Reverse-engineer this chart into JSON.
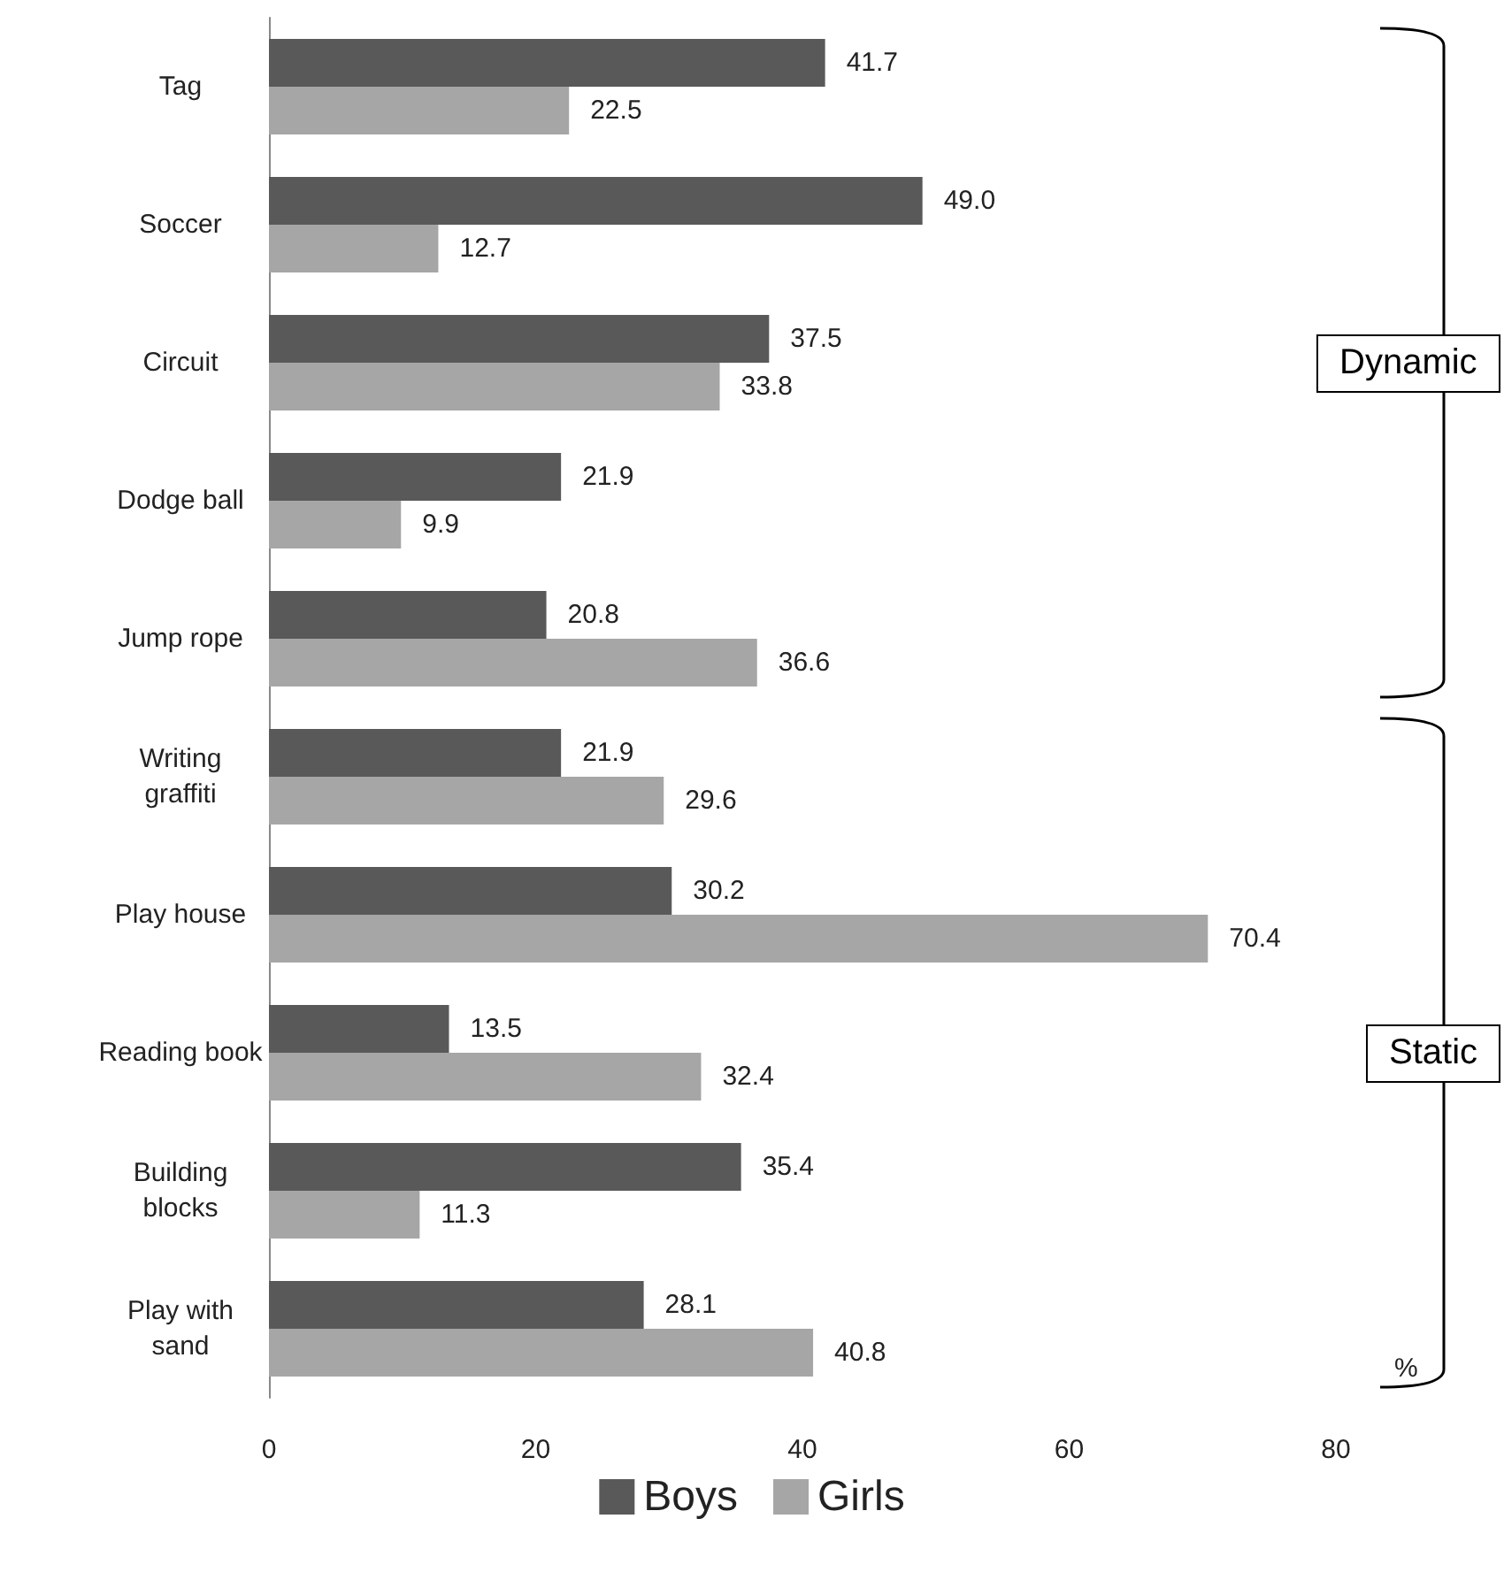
{
  "chart_data": {
    "type": "bar",
    "orientation": "horizontal",
    "categories": [
      "Tag",
      "Soccer",
      "Circuit",
      "Dodge ball",
      "Jump rope",
      "Writing\ngraffiti",
      "Play house",
      "Reading book",
      "Building\nblocks",
      "Play with\nsand"
    ],
    "series": [
      {
        "name": "Boys",
        "color": "#595959",
        "values": [
          41.7,
          49.0,
          37.5,
          21.9,
          20.8,
          21.9,
          30.2,
          13.5,
          35.4,
          28.1
        ],
        "value_labels": [
          "41.7",
          "49.0",
          "37.5",
          "21.9",
          "20.8",
          "21.9",
          "30.2",
          "13.5",
          "35.4",
          "28.1"
        ]
      },
      {
        "name": "Girls",
        "color": "#a6a6a6",
        "values": [
          22.5,
          12.7,
          33.8,
          9.9,
          36.6,
          29.6,
          70.4,
          32.4,
          11.3,
          40.8
        ],
        "value_labels": [
          "22.5",
          "12.7",
          "33.8",
          "9.9",
          "36.6",
          "29.6",
          "70.4",
          "32.4",
          "11.3",
          "40.8"
        ]
      }
    ],
    "xlim": [
      0,
      80
    ],
    "xticks": [
      0,
      20,
      40,
      60,
      80
    ],
    "xlabel": "%",
    "annotations": [
      "Dynamic",
      "Static"
    ],
    "legend": "bottom",
    "grid": false
  }
}
